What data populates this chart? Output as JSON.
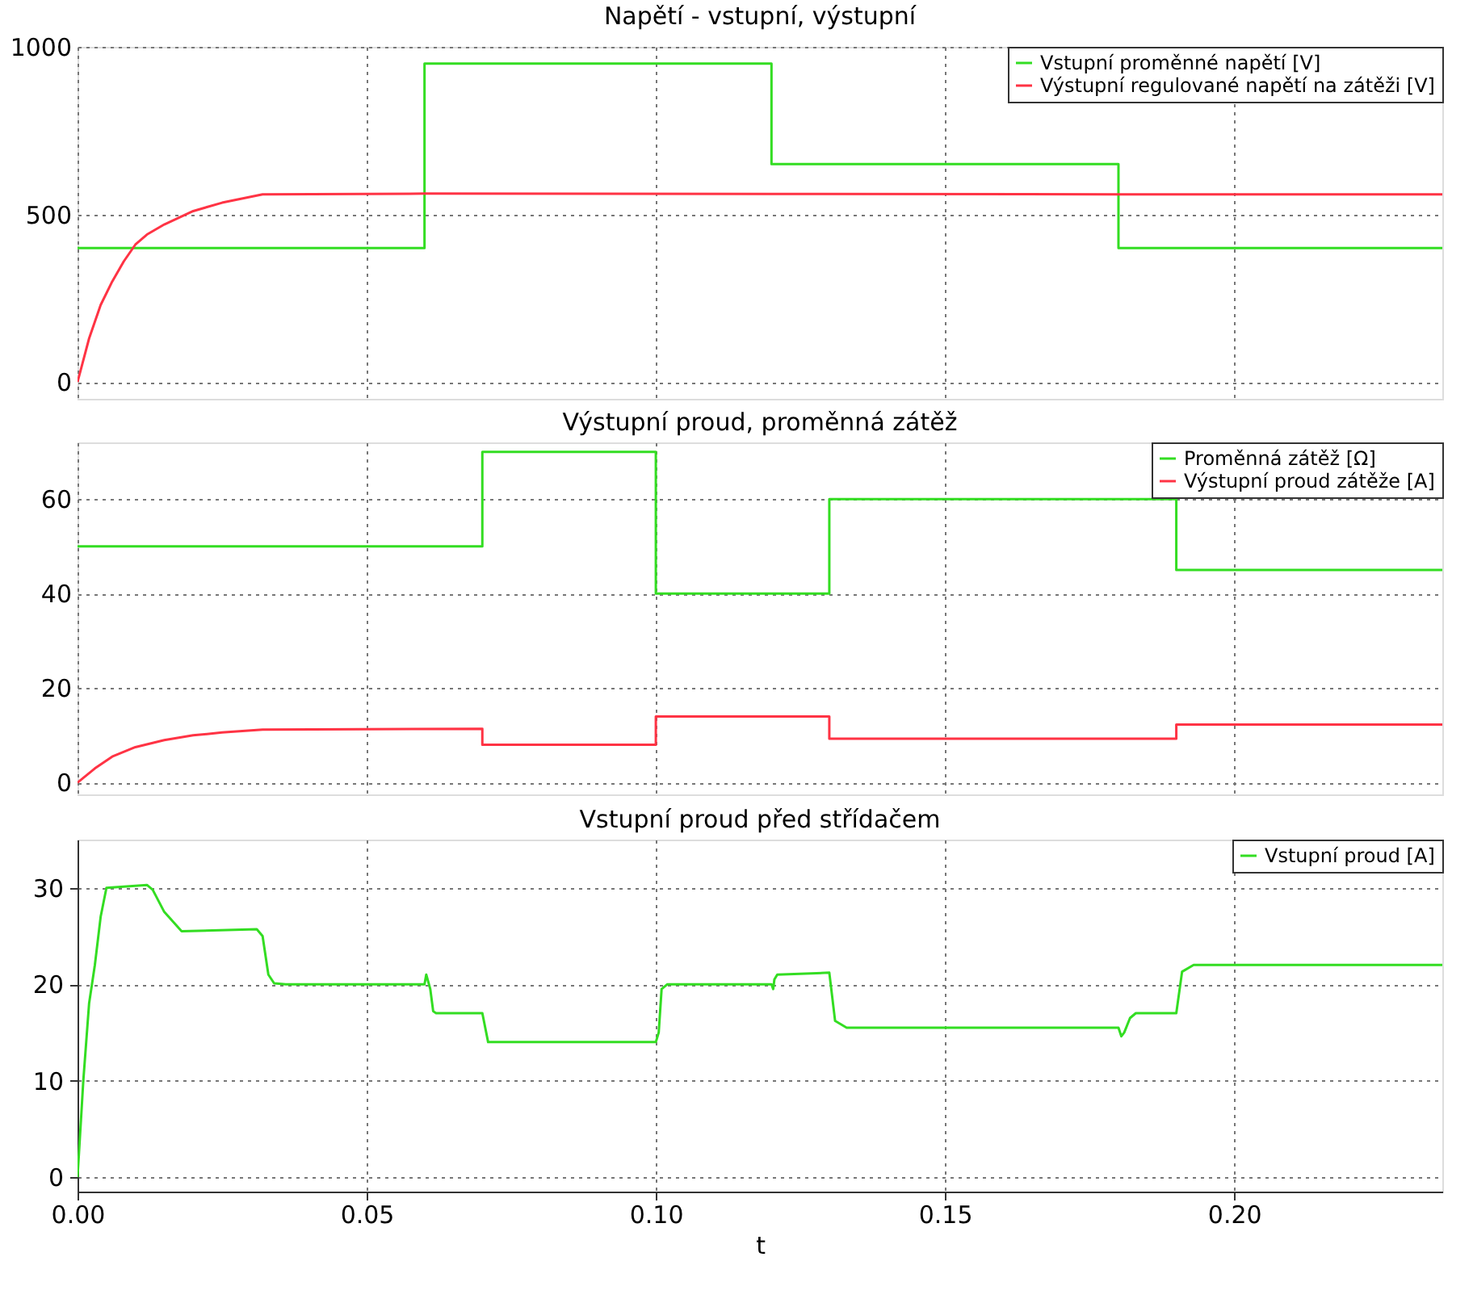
{
  "chart_data": [
    {
      "type": "line",
      "title": "Napětí - vstupní, výstupní",
      "xlim": [
        0,
        0.236
      ],
      "ylim": [
        -50,
        1000
      ],
      "yticks": [
        0,
        500,
        {
          "value": 1000,
          "label": "1000"
        }
      ],
      "xticks": [
        0,
        0.05,
        0.1,
        0.15,
        0.2
      ],
      "tick_labels": "y",
      "grid": true,
      "legend": "top right",
      "series": [
        {
          "name": "Vstupní proměnné napětí [V]",
          "type": "step",
          "color": "#33dd22",
          "x": [
            0,
            0.06,
            0.12,
            0.18,
            0.236
          ],
          "values": [
            400,
            950,
            650,
            400,
            400
          ]
        },
        {
          "name": "Výstupní regulované napětí na zátěži [V]",
          "color": "#ff3344",
          "x": [
            0,
            0.002,
            0.004,
            0.006,
            0.008,
            0.01,
            0.012,
            0.015,
            0.02,
            0.025,
            0.032,
            0.06,
            0.12,
            0.18,
            0.236
          ],
          "values": [
            0,
            130,
            230,
            300,
            360,
            410,
            440,
            470,
            510,
            535,
            560,
            562,
            561,
            560,
            560
          ]
        }
      ]
    },
    {
      "type": "line",
      "title": "Výstupní proud, proměnná zátěž",
      "xlim": [
        0,
        0.236
      ],
      "ylim": [
        -2.5,
        72
      ],
      "yticks": [
        0,
        20,
        40,
        60
      ],
      "xticks": [
        0,
        0.05,
        0.1,
        0.15,
        0.2
      ],
      "tick_labels": "y",
      "grid": true,
      "legend": "top right",
      "series": [
        {
          "name": "Proměnná zátěž [Ω]",
          "type": "step",
          "color": "#33dd22",
          "x": [
            0,
            0.07,
            0.1,
            0.13,
            0.19,
            0.236
          ],
          "values": [
            50,
            70,
            40,
            60,
            45,
            45
          ]
        },
        {
          "name": "Výstupní proud zátěže [A]",
          "color": "#ff3344",
          "x": [
            0,
            0.003,
            0.006,
            0.01,
            0.015,
            0.02,
            0.025,
            0.032,
            0.07,
            0.07,
            0.1,
            0.1,
            0.13,
            0.13,
            0.19,
            0.19,
            0.236
          ],
          "values": [
            0,
            3,
            5.5,
            7.5,
            9,
            10,
            10.6,
            11.2,
            11.4,
            8,
            8,
            14,
            14,
            9.3,
            9.3,
            12.3,
            12.3
          ]
        }
      ]
    },
    {
      "type": "line",
      "title": "Vstupní proud před střídačem",
      "xlabel": "t",
      "xlim": [
        0,
        0.236
      ],
      "ylim": [
        -1.5,
        35
      ],
      "yticks": [
        0,
        10,
        20,
        30
      ],
      "xticks": [
        {
          "value": 0,
          "label": "0.00"
        },
        {
          "value": 0.05,
          "label": "0.05"
        },
        {
          "value": 0.1,
          "label": "0.10"
        },
        {
          "value": 0.15,
          "label": "0.15"
        },
        {
          "value": 0.2,
          "label": "0.20"
        }
      ],
      "grid": true,
      "legend": "top right",
      "series": [
        {
          "name": "Vstupní proud [A]",
          "color": "#33dd22",
          "x": [
            0,
            0.001,
            0.002,
            0.003,
            0.004,
            0.005,
            0.012,
            0.013,
            0.015,
            0.018,
            0.031,
            0.032,
            0.033,
            0.034,
            0.036,
            0.06,
            0.0603,
            0.061,
            0.0615,
            0.062,
            0.07,
            0.071,
            0.1,
            0.1005,
            0.101,
            0.102,
            0.12,
            0.1203,
            0.1205,
            0.121,
            0.13,
            0.131,
            0.133,
            0.18,
            0.1805,
            0.181,
            0.182,
            0.183,
            0.19,
            0.191,
            0.193,
            0.236
          ],
          "values": [
            0,
            10,
            18,
            22,
            27,
            30,
            30.3,
            29.8,
            27.5,
            25.5,
            25.7,
            25,
            21,
            20.1,
            20,
            20,
            21,
            19.5,
            17.2,
            17,
            17,
            14,
            14,
            15,
            19.5,
            20,
            20,
            19.5,
            20.5,
            21,
            21.2,
            16.2,
            15.5,
            15.5,
            14.6,
            15,
            16.5,
            17,
            17,
            21.3,
            22,
            22
          ]
        }
      ]
    }
  ]
}
